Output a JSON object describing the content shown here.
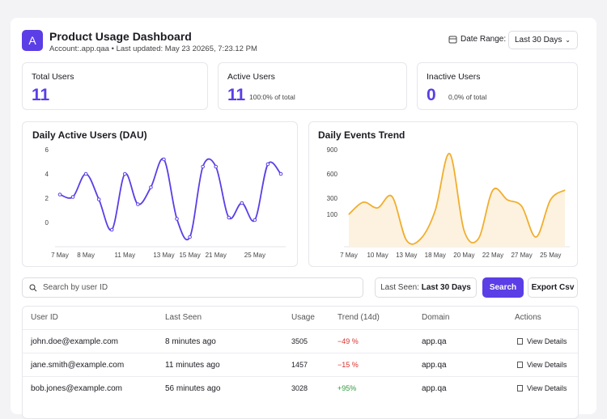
{
  "header": {
    "logo": "A",
    "title": "Product Usage Dashboard",
    "account": "Account:.app.qaa",
    "updated": "Last updated: May 23 20265, 7:23.12 PM",
    "date_range_label": "Date Range:",
    "date_range": "Last 30 Days"
  },
  "stats": [
    {
      "label": "Total Users",
      "value": 11
    },
    {
      "label": "Active Users",
      "value": 11,
      "note": "100:0% of total"
    },
    {
      "label": "Inactive Users",
      "value": 0,
      "note": "0,0% of total"
    }
  ],
  "dau_chart": {
    "type": "line",
    "title": "Daily Active Users (DAU)",
    "color": "#5b3ee6",
    "categories": [
      "7 May",
      null,
      "8 May",
      null,
      null,
      "11 May",
      null,
      null,
      "13 May",
      null,
      "15 May",
      null,
      "21 May",
      null,
      null,
      "25 May",
      null,
      null
    ],
    "values": [
      2.3,
      2.1,
      4,
      1.9,
      -0.6,
      4,
      1.5,
      2.9,
      5.2,
      0.3,
      -1.2,
      4.6,
      4.6,
      0.4,
      1.6,
      0.2,
      4.8,
      4
    ],
    "ylim": [
      -2,
      6
    ],
    "yticks": [
      0,
      2,
      4,
      6
    ],
    "markers": true
  },
  "events_chart": {
    "type": "area",
    "title": "Daily Events Trend",
    "color": "#f0ae2e",
    "fill": "#fdf2df",
    "categories": [
      "7 May",
      null,
      "10 May",
      null,
      "13 May",
      null,
      "18 May",
      null,
      "20 May",
      null,
      "22 May",
      null,
      "27 May",
      null,
      "25 May",
      null
    ],
    "values": [
      100,
      250,
      180,
      320,
      -220,
      -200,
      150,
      850,
      -100,
      -200,
      400,
      280,
      200,
      -180,
      280,
      400
    ],
    "ylim": [
      -300,
      900
    ],
    "yticks": [
      100,
      300,
      600,
      900
    ],
    "markers": false
  },
  "filters": {
    "search_placeholder": "Search by user ID",
    "last_seen_label": "Last Seen:",
    "last_seen": "Last 30 Days",
    "search_button": "Search",
    "export_button": "Export Csv"
  },
  "table": {
    "columns": [
      "User ID",
      "Last Seen",
      "Usage",
      "Trend (14d)",
      "Domain",
      "Actions"
    ],
    "rows": [
      [
        "john.doe@example.com",
        "8 minutes ago",
        3505,
        "−49 %",
        "app.qa",
        "View Details"
      ],
      [
        "jane.smith@example.com",
        "11 minutes ago",
        1457,
        "−15 %",
        "app.qa",
        "View Details"
      ],
      [
        "bob.jones@example.com",
        "56 minutes ago",
        3028,
        "+95%",
        "app.qa",
        "View Details"
      ]
    ]
  }
}
